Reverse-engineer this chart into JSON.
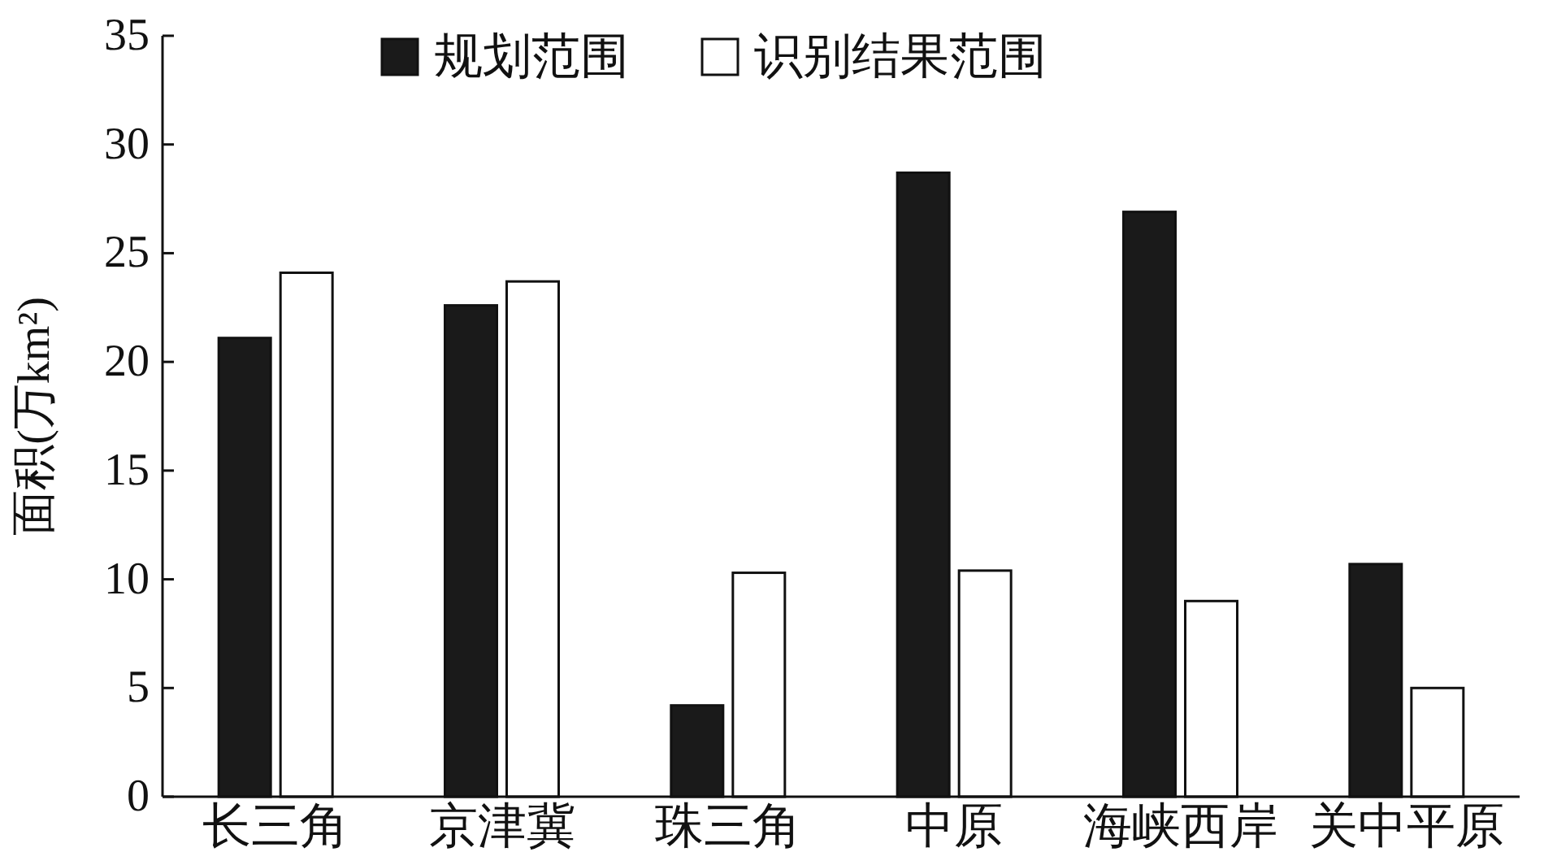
{
  "chart_data": {
    "type": "bar",
    "ylabel": "面积(万km²)",
    "categories": [
      "长三角",
      "京津冀",
      "珠三角",
      "中原",
      "海峡西岸",
      "关中平原"
    ],
    "series": [
      {
        "name": "规划范围",
        "color": "#1a1a1a",
        "values": [
          21.1,
          22.6,
          4.2,
          28.7,
          26.9,
          10.7
        ]
      },
      {
        "name": "识别结果范围",
        "color": "#ffffff",
        "values": [
          24.1,
          23.7,
          10.3,
          10.4,
          9.0,
          5.0
        ]
      }
    ],
    "ylim": [
      0,
      35
    ],
    "yticks": [
      0,
      5,
      10,
      15,
      20,
      25,
      30,
      35
    ],
    "legend": "top",
    "grid": false
  }
}
